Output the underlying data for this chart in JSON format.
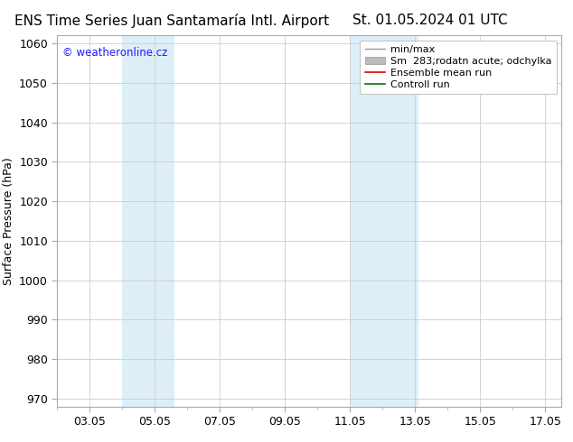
{
  "title_left": "ENS Time Series Juan Santamaría Intl. Airport",
  "title_right": "St. 01.05.2024 01 UTC",
  "ylabel": "Surface Pressure (hPa)",
  "ylim": [
    968,
    1062
  ],
  "yticks": [
    970,
    980,
    990,
    1000,
    1010,
    1020,
    1030,
    1040,
    1050,
    1060
  ],
  "xlim": [
    2.0,
    17.5
  ],
  "xtick_positions": [
    3,
    5,
    7,
    9,
    11,
    13,
    15,
    17
  ],
  "xtick_labels": [
    "03.05",
    "05.05",
    "07.05",
    "09.05",
    "11.05",
    "13.05",
    "15.05",
    "17.05"
  ],
  "shaded_bands": [
    {
      "x_start": 4.0,
      "x_end": 5.6,
      "color": "#ddeef8"
    },
    {
      "x_start": 11.0,
      "x_end": 13.1,
      "color": "#ddeef8"
    }
  ],
  "watermark_text": "© weatheronline.cz",
  "watermark_color": "#1a1aff",
  "legend_entries": [
    {
      "label": "min/max",
      "color": "#999999",
      "lw": 1.0,
      "type": "line"
    },
    {
      "label": "Sm  283;rodatn acute; odchylka",
      "color": "#bbbbbb",
      "lw": 5,
      "type": "band"
    },
    {
      "label": "Ensemble mean run",
      "color": "#dd0000",
      "lw": 1.2,
      "type": "line"
    },
    {
      "label": "Controll run",
      "color": "#007700",
      "lw": 1.2,
      "type": "line"
    }
  ],
  "bg_color": "#ffffff",
  "plot_bg_color": "#ffffff",
  "grid_color": "#cccccc",
  "spine_color": "#aaaaaa",
  "title_fontsize": 11,
  "axis_label_fontsize": 9,
  "tick_fontsize": 9,
  "legend_fontsize": 8
}
